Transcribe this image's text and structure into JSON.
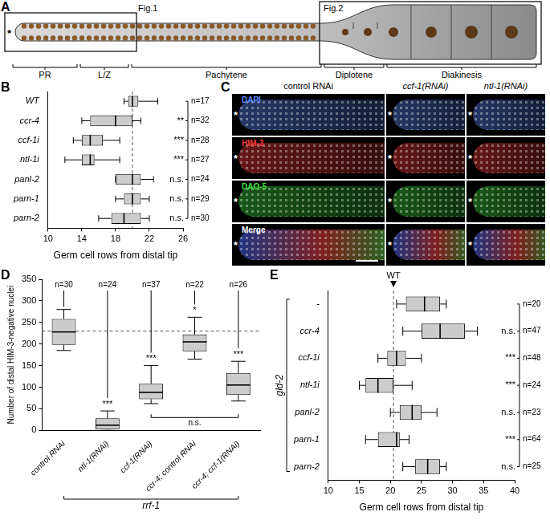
{
  "diagram": {
    "label": "A",
    "tip_marker": "*",
    "boxes": [
      "Fig.1",
      "Fig.2"
    ],
    "regions": [
      "PR",
      "L/Z",
      "Pachytene",
      "Diplotene",
      "Diakinesis"
    ]
  },
  "micrographs": {
    "label": "C",
    "tip_marker": "*",
    "columns": [
      "control RNAi",
      "ccf-1(RNAi)",
      "ntl-1(RNAi)"
    ],
    "rows": [
      {
        "stain": "DAPI",
        "color": "#5b8cff"
      },
      {
        "stain": "HIM-3",
        "color": "#ff3b3b"
      },
      {
        "stain": "DAO-5",
        "color": "#3ddc3d"
      },
      {
        "stain": "Merge",
        "color": "#ffffff"
      }
    ]
  },
  "chart_data": [
    {
      "panel": "B",
      "type": "boxplot",
      "orientation": "horizontal",
      "grid": false,
      "color": "#cccccc",
      "categories": [
        "WT",
        "ccr-4",
        "ccf-1i",
        "ntl-1i",
        "panl-2",
        "parn-1",
        "parn-2"
      ],
      "boxes": [
        {
          "min": 19,
          "q1": 19.5,
          "median": 20,
          "q3": 20.7,
          "max": 23
        },
        {
          "min": 14,
          "q1": 15,
          "median": 18,
          "q3": 20,
          "max": 21
        },
        {
          "min": 13,
          "q1": 14,
          "median": 15,
          "q3": 16.5,
          "max": 18.5
        },
        {
          "min": 12,
          "q1": 14,
          "median": 15,
          "q3": 15.5,
          "max": 18.5
        },
        {
          "min": 18,
          "q1": 18,
          "median": 20,
          "q3": 21,
          "max": 22.5
        },
        {
          "min": 18,
          "q1": 19,
          "median": 20,
          "q3": 21,
          "max": 22
        },
        {
          "min": 16,
          "q1": 17.5,
          "median": 19,
          "q3": 21,
          "max": 22
        }
      ],
      "n_labels": [
        "n=17",
        "n=32",
        "n=28",
        "n=27",
        "n=24",
        "n=29",
        "n=30"
      ],
      "significance": [
        null,
        "**",
        "***",
        "***",
        "n.s.",
        "n.s.",
        "n.s."
      ],
      "x_label": "Germ cell rows from distal tip",
      "xlim": [
        10,
        26
      ],
      "xticks": [
        10,
        14,
        18,
        22,
        26
      ],
      "reference_line": 20
    },
    {
      "panel": "D",
      "type": "boxplot",
      "orientation": "vertical",
      "grid": false,
      "color": "#cccccc",
      "categories": [
        "control RNAi",
        "ntl-1(RNAi)",
        "ccf-1(RNAi)",
        "ccr-4; control RNAi",
        "ccr-4; ccf-1(RNAi)"
      ],
      "boxes": [
        {
          "min": 185,
          "q1": 198,
          "median": 228,
          "q3": 258,
          "max": 280
        },
        {
          "min": 0,
          "q1": 2,
          "median": 12,
          "q3": 28,
          "max": 45
        },
        {
          "min": 62,
          "q1": 72,
          "median": 88,
          "q3": 108,
          "max": 150
        },
        {
          "min": 165,
          "q1": 183,
          "median": 205,
          "q3": 222,
          "max": 262
        },
        {
          "min": 68,
          "q1": 82,
          "median": 105,
          "q3": 133,
          "max": 160
        }
      ],
      "n_labels": [
        "n=30",
        "n=24",
        "n=37",
        "n=22",
        "n=26"
      ],
      "significance": [
        null,
        "***",
        "***",
        "*",
        "***"
      ],
      "comparisons": [
        {
          "from": 2,
          "to": 4,
          "label": "n.s."
        }
      ],
      "group_label": "rrf-1",
      "y_label": "Number of distal HIM-3-negative nuclei",
      "ylim": [
        0,
        350
      ],
      "yticks": [
        0,
        50,
        100,
        150,
        200,
        250,
        300,
        350
      ],
      "reference_line": 230
    },
    {
      "panel": "E",
      "type": "boxplot",
      "orientation": "horizontal",
      "grid": false,
      "color": "#cccccc",
      "categories": [
        "-",
        "ccr-4",
        "ccf-1i",
        "ntl-1i",
        "panl-2",
        "parn-1",
        "parn-2"
      ],
      "boxes": [
        {
          "min": 21,
          "q1": 22.5,
          "median": 25.5,
          "q3": 28,
          "max": 29
        },
        {
          "min": 22,
          "q1": 25,
          "median": 28,
          "q3": 32,
          "max": 34
        },
        {
          "min": 18,
          "q1": 19.5,
          "median": 21,
          "q3": 22.5,
          "max": 25
        },
        {
          "min": 15,
          "q1": 16,
          "median": 18,
          "q3": 20.5,
          "max": 23.5
        },
        {
          "min": 20,
          "q1": 21.5,
          "median": 23.5,
          "q3": 25,
          "max": 27.5
        },
        {
          "min": 16,
          "q1": 18,
          "median": 21,
          "q3": 21.5,
          "max": 23
        },
        {
          "min": 22,
          "q1": 24,
          "median": 26,
          "q3": 28,
          "max": 29
        }
      ],
      "n_labels": [
        "n=20",
        "n=47",
        "n=48",
        "n=24",
        "n=23",
        "n=64",
        "n=25"
      ],
      "significance": [
        null,
        "n.s.",
        "***",
        "***",
        "n.s.",
        "***",
        "n.s."
      ],
      "group_label": "gld-2",
      "x_label": "Germ cell rows from distal tip",
      "xlim": [
        10,
        40
      ],
      "xticks": [
        10,
        15,
        20,
        25,
        30,
        35,
        40
      ],
      "reference_line": 20.5,
      "reference_label": "WT"
    }
  ]
}
